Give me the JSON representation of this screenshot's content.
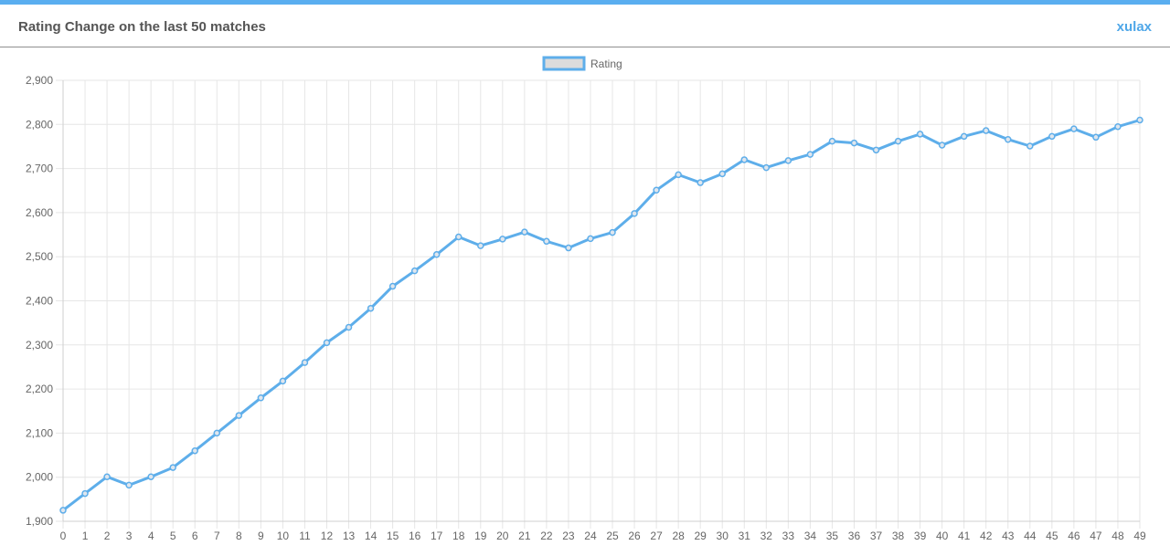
{
  "header": {
    "title": "Rating Change on the last 50 matches",
    "user": "xulax"
  },
  "colors": {
    "accent": "#5aaef0",
    "line": "#5eaeea",
    "legend_fill": "#dcdcdc",
    "grid": "#e6e6e6"
  },
  "chart_data": {
    "type": "line",
    "title": "",
    "xlabel": "",
    "ylabel": "",
    "x": [
      0,
      1,
      2,
      3,
      4,
      5,
      6,
      7,
      8,
      9,
      10,
      11,
      12,
      13,
      14,
      15,
      16,
      17,
      18,
      19,
      20,
      21,
      22,
      23,
      24,
      25,
      26,
      27,
      28,
      29,
      30,
      31,
      32,
      33,
      34,
      35,
      36,
      37,
      38,
      39,
      40,
      41,
      42,
      43,
      44,
      45,
      46,
      47,
      48,
      49
    ],
    "ylim": [
      1900,
      2900
    ],
    "yticks": [
      1900,
      2000,
      2100,
      2200,
      2300,
      2400,
      2500,
      2600,
      2700,
      2800,
      2900
    ],
    "ytick_labels": [
      "1,900",
      "2,000",
      "2,100",
      "2,200",
      "2,300",
      "2,400",
      "2,500",
      "2,600",
      "2,700",
      "2,800",
      "2,900"
    ],
    "legend_position": "top-center",
    "grid": true,
    "series": [
      {
        "name": "Rating",
        "values": [
          1925,
          1963,
          2001,
          1982,
          2001,
          2022,
          2060,
          2100,
          2140,
          2180,
          2218,
          2260,
          2305,
          2340,
          2383,
          2433,
          2468,
          2505,
          2545,
          2525,
          2540,
          2556,
          2535,
          2520,
          2541,
          2555,
          2598,
          2651,
          2686,
          2668,
          2688,
          2720,
          2702,
          2718,
          2732,
          2762,
          2758,
          2742,
          2762,
          2778,
          2753,
          2773,
          2786,
          2766,
          2751,
          2773,
          2790,
          2771,
          2795,
          2810
        ]
      }
    ]
  }
}
